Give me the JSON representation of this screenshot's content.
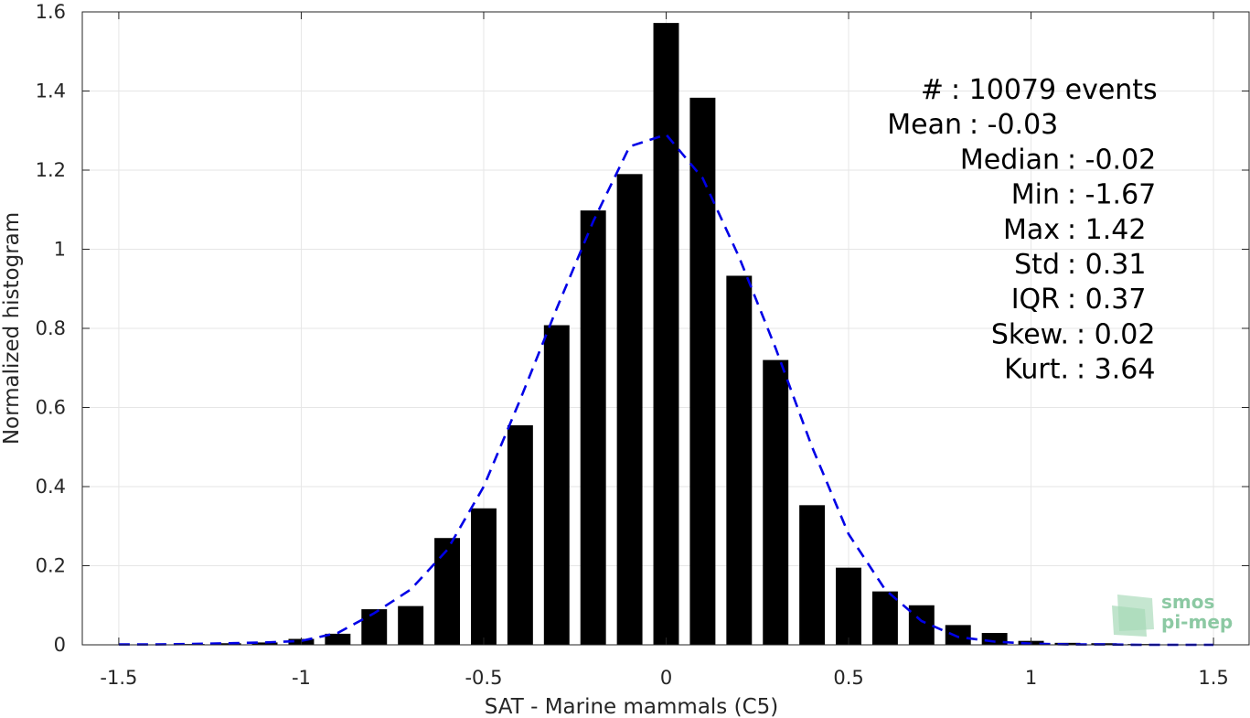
{
  "chart_data": {
    "type": "bar",
    "xlabel": "SAT - Marine mammals (C5)",
    "ylabel": "Normalized histogram",
    "xlim": [
      -1.6,
      1.6
    ],
    "ylim": [
      0,
      1.6
    ],
    "xticks": [
      -1.5,
      -1,
      -0.5,
      0,
      0.5,
      1,
      1.5
    ],
    "xtick_labels": [
      "-1.5",
      "-1",
      "-0.5",
      "0",
      "0.5",
      "1",
      "1.5"
    ],
    "yticks": [
      0,
      0.2,
      0.4,
      0.6,
      0.8,
      1,
      1.2,
      1.4,
      1.6
    ],
    "ytick_labels": [
      "0",
      "0.2",
      "0.4",
      "0.6",
      "0.8",
      "1",
      "1.2",
      "1.4",
      "1.6"
    ],
    "grid": true,
    "bar_width": 0.07,
    "bar_color": "#000000",
    "series": [
      {
        "x": [
          -1.5,
          -1.4,
          -1.3,
          -1.2,
          -1.1,
          -1.0,
          -0.9,
          -0.8,
          -0.7,
          -0.6,
          -0.5,
          -0.4,
          -0.3,
          -0.2,
          -0.1,
          0.0,
          0.1,
          0.2,
          0.3,
          0.4,
          0.5,
          0.6,
          0.7,
          0.8,
          0.9,
          1.0,
          1.1,
          1.2,
          1.3
        ],
        "values": [
          0.001,
          0.001,
          0.002,
          0.004,
          0.006,
          0.015,
          0.028,
          0.09,
          0.098,
          0.27,
          0.345,
          0.555,
          0.808,
          1.098,
          1.19,
          1.572,
          1.383,
          0.933,
          0.72,
          0.353,
          0.195,
          0.135,
          0.1,
          0.05,
          0.03,
          0.01,
          0.005,
          0.004,
          0.002
        ]
      }
    ],
    "fit_curve": {
      "style": "dashed",
      "color": "#0000e6",
      "x": [
        -1.5,
        -1.4,
        -1.3,
        -1.2,
        -1.1,
        -1.0,
        -0.9,
        -0.8,
        -0.7,
        -0.6,
        -0.5,
        -0.4,
        -0.3,
        -0.2,
        -0.1,
        0.0,
        0.1,
        0.2,
        0.3,
        0.4,
        0.5,
        0.6,
        0.7,
        0.8,
        0.9,
        1.0,
        1.1,
        1.2,
        1.3,
        1.4,
        1.5
      ],
      "values": [
        0.001,
        0.001,
        0.002,
        0.004,
        0.006,
        0.01,
        0.03,
        0.08,
        0.14,
        0.24,
        0.4,
        0.62,
        0.85,
        1.07,
        1.26,
        1.29,
        1.18,
        0.98,
        0.75,
        0.5,
        0.28,
        0.14,
        0.06,
        0.02,
        0.008,
        0.003,
        0.001,
        0.001,
        0.0,
        0.0,
        0.0
      ]
    },
    "stats": [
      {
        "label": "#  ",
        "value": ": 10079 events"
      },
      {
        "label": "Mean",
        "value": ": -0.03"
      },
      {
        "label": "Median",
        "value": ": -0.02"
      },
      {
        "label": "Min",
        "value": ": -1.67"
      },
      {
        "label": "Max",
        "value": ": 1.42"
      },
      {
        "label": "Std",
        "value": ": 0.31"
      },
      {
        "label": "IQR",
        "value": ": 0.37"
      },
      {
        "label": "Skew.",
        "value": ": 0.02"
      },
      {
        "label": "Kurt.",
        "value": ": 3.64"
      }
    ]
  },
  "logo": {
    "line1": "smos",
    "line2": "pi-mep",
    "color": "#8cc9a3"
  }
}
